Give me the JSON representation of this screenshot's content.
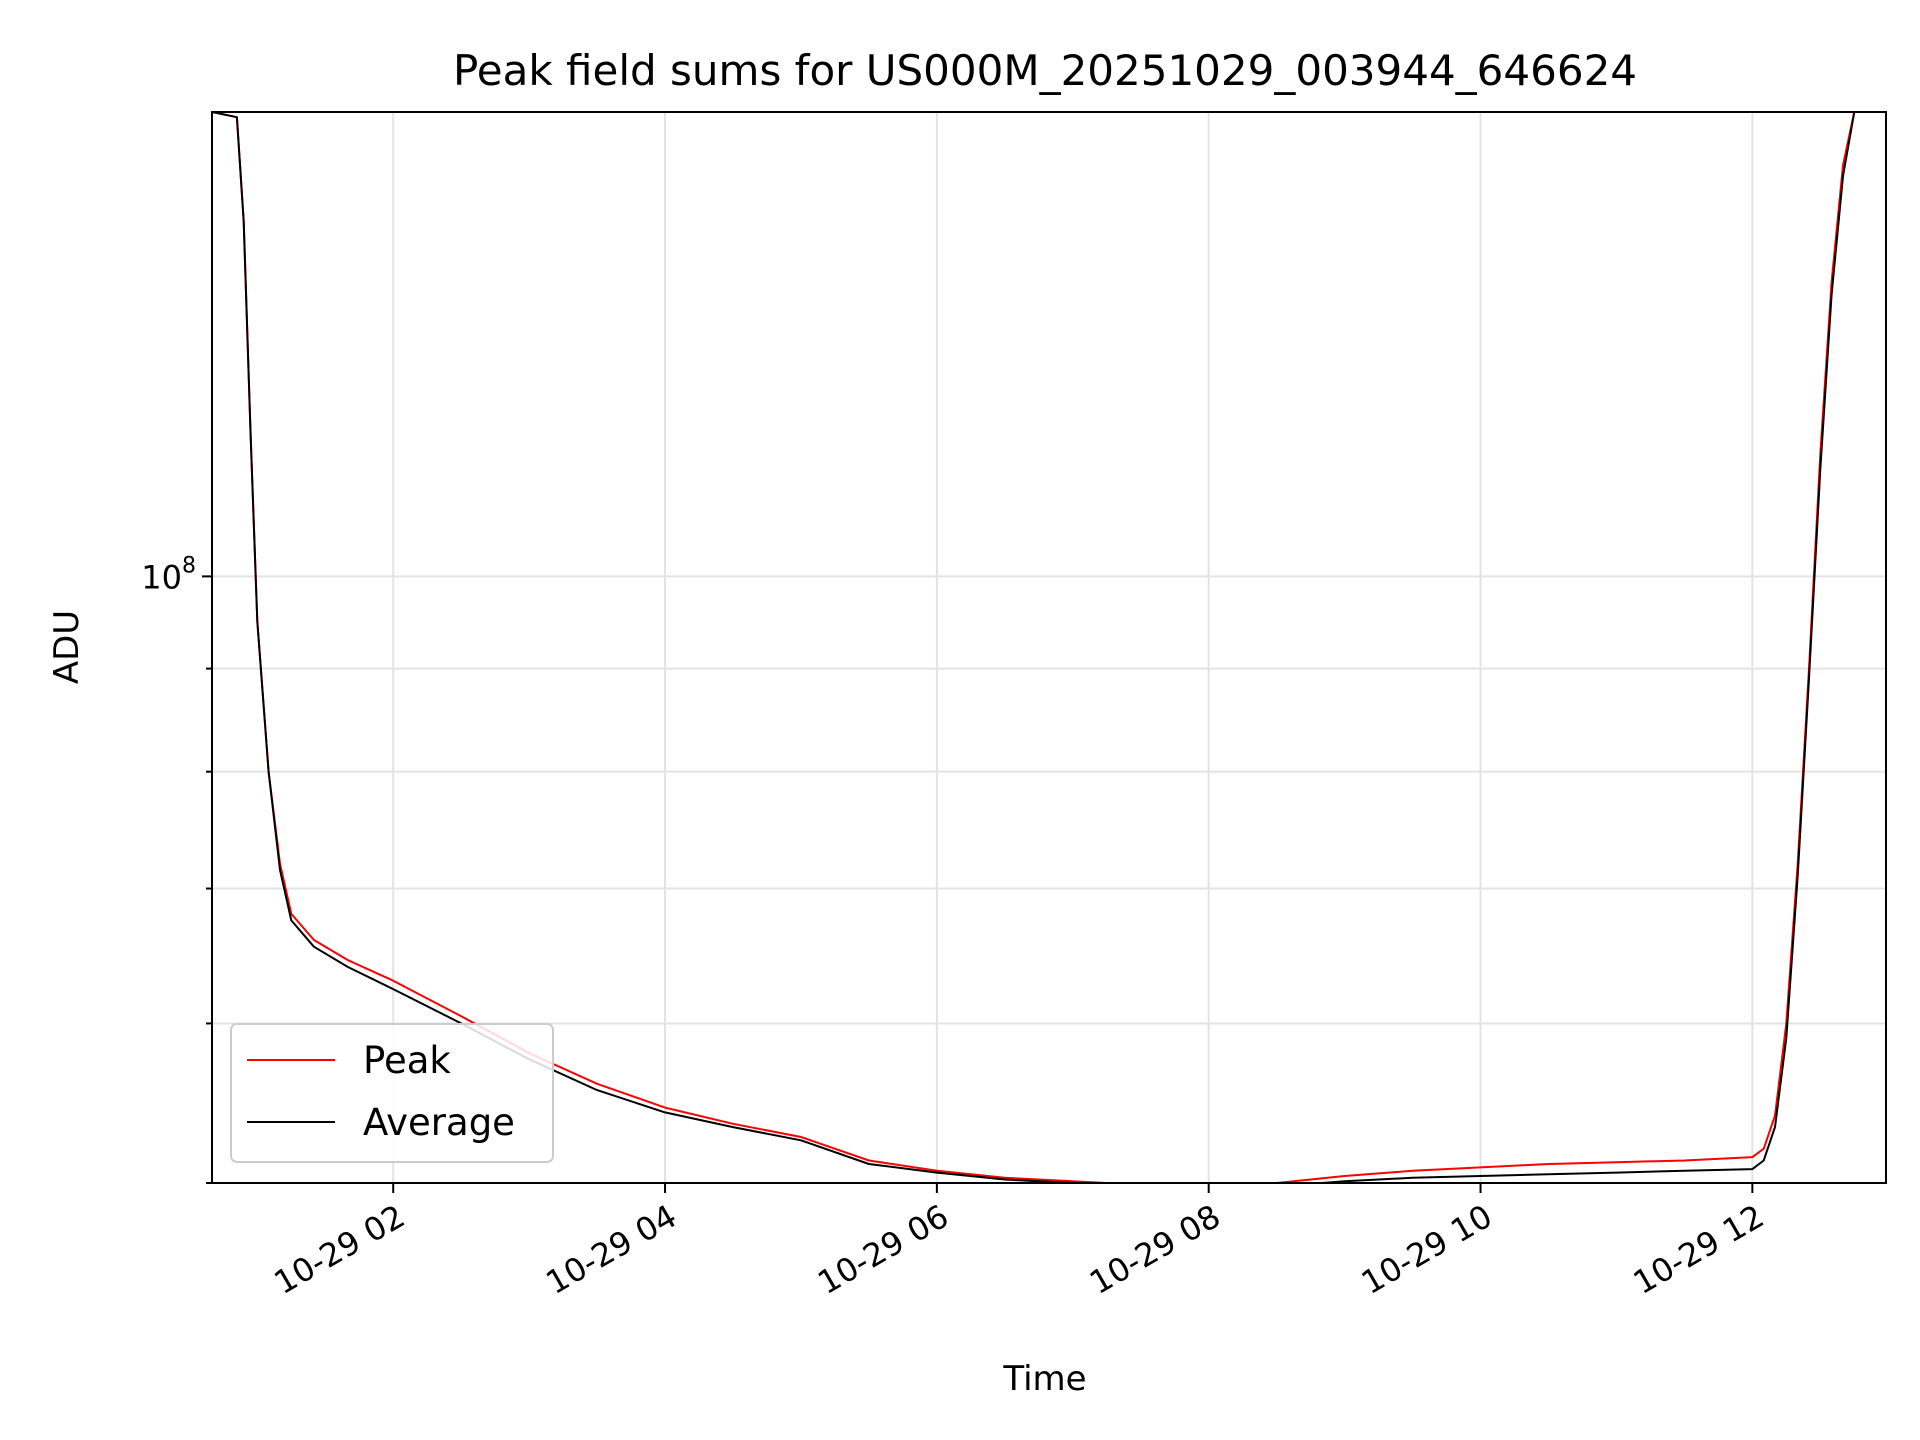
{
  "chart_data": {
    "type": "line",
    "title": "Peak field sums for US000M_20251029_003944_646624",
    "xlabel": "Time",
    "ylabel": "ADU",
    "xlim": [
      "2025-10-29 00:40",
      "2025-10-29 12:59"
    ],
    "ylim": [
      50000000,
      170000000
    ],
    "yscale": "log",
    "grid": true,
    "legend": "lower-left",
    "x_ticks": [
      {
        "value": "2025-10-29 02:00",
        "label": "10-29 02"
      },
      {
        "value": "2025-10-29 04:00",
        "label": "10-29 04"
      },
      {
        "value": "2025-10-29 06:00",
        "label": "10-29 06"
      },
      {
        "value": "2025-10-29 08:00",
        "label": "10-29 08"
      },
      {
        "value": "2025-10-29 10:00",
        "label": "10-29 10"
      },
      {
        "value": "2025-10-29 12:00",
        "label": "10-29 12"
      }
    ],
    "y_major_ticks": [
      {
        "value": 100000000,
        "base": "10",
        "exp": "8"
      }
    ],
    "y_minor_ticks": [
      50000000,
      60000000,
      70000000,
      80000000,
      90000000,
      200000000
    ],
    "series": [
      {
        "name": "Peak",
        "color": "#ff0000",
        "x": [
          "2025-10-29 00:40",
          "2025-10-29 00:51",
          "2025-10-29 00:54",
          "2025-10-29 00:57",
          "2025-10-29 01:00",
          "2025-10-29 01:05",
          "2025-10-29 01:10",
          "2025-10-29 01:15",
          "2025-10-29 01:25",
          "2025-10-29 01:40",
          "2025-10-29 02:00",
          "2025-10-29 02:30",
          "2025-10-29 03:00",
          "2025-10-29 03:30",
          "2025-10-29 04:00",
          "2025-10-29 04:30",
          "2025-10-29 05:00",
          "2025-10-29 05:30",
          "2025-10-29 06:00",
          "2025-10-29 06:30",
          "2025-10-29 07:00",
          "2025-10-29 07:30",
          "2025-10-29 08:00",
          "2025-10-29 08:30",
          "2025-10-29 09:00",
          "2025-10-29 09:30",
          "2025-10-29 10:00",
          "2025-10-29 10:30",
          "2025-10-29 11:00",
          "2025-10-29 11:30",
          "2025-10-29 12:00",
          "2025-10-29 12:05",
          "2025-10-29 12:10",
          "2025-10-29 12:15",
          "2025-10-29 12:20",
          "2025-10-29 12:25",
          "2025-10-29 12:30",
          "2025-10-29 12:35",
          "2025-10-29 12:40",
          "2025-10-29 12:45",
          "2025-10-29 12:59"
        ],
        "values": [
          170000000,
          169000000,
          150000000,
          118000000,
          95000000,
          80000000,
          72000000,
          68000000,
          66000000,
          64500000,
          63000000,
          60500000,
          58000000,
          56000000,
          54500000,
          53500000,
          52700000,
          51300000,
          50700000,
          50300000,
          50100000,
          49900000,
          49700000,
          50000000,
          50400000,
          50700000,
          50900000,
          51100000,
          51200000,
          51300000,
          51500000,
          52000000,
          54000000,
          60000000,
          72000000,
          90000000,
          115000000,
          140000000,
          160000000,
          170000000,
          170000000
        ]
      },
      {
        "name": "Average",
        "color": "#000000",
        "x": [
          "2025-10-29 00:40",
          "2025-10-29 00:51",
          "2025-10-29 00:54",
          "2025-10-29 00:57",
          "2025-10-29 01:00",
          "2025-10-29 01:05",
          "2025-10-29 01:10",
          "2025-10-29 01:15",
          "2025-10-29 01:25",
          "2025-10-29 01:40",
          "2025-10-29 02:00",
          "2025-10-29 02:30",
          "2025-10-29 03:00",
          "2025-10-29 03:30",
          "2025-10-29 04:00",
          "2025-10-29 04:30",
          "2025-10-29 05:00",
          "2025-10-29 05:30",
          "2025-10-29 06:00",
          "2025-10-29 06:30",
          "2025-10-29 07:00",
          "2025-10-29 07:30",
          "2025-10-29 08:00",
          "2025-10-29 08:30",
          "2025-10-29 09:00",
          "2025-10-29 09:30",
          "2025-10-29 10:00",
          "2025-10-29 10:30",
          "2025-10-29 11:00",
          "2025-10-29 11:30",
          "2025-10-29 12:00",
          "2025-10-29 12:05",
          "2025-10-29 12:10",
          "2025-10-29 12:15",
          "2025-10-29 12:20",
          "2025-10-29 12:25",
          "2025-10-29 12:30",
          "2025-10-29 12:35",
          "2025-10-29 12:40",
          "2025-10-29 12:45",
          "2025-10-29 12:59"
        ],
        "values": [
          170000000,
          169000000,
          150000000,
          118000000,
          95000000,
          80000000,
          71500000,
          67500000,
          65500000,
          64000000,
          62400000,
          60000000,
          57600000,
          55600000,
          54200000,
          53300000,
          52500000,
          51100000,
          50600000,
          50200000,
          50000000,
          49800000,
          49600000,
          49800000,
          50100000,
          50300000,
          50400000,
          50500000,
          50600000,
          50700000,
          50800000,
          51300000,
          53300000,
          59000000,
          71000000,
          89000000,
          113000000,
          138000000,
          158000000,
          170000000,
          170000000
        ]
      }
    ]
  }
}
